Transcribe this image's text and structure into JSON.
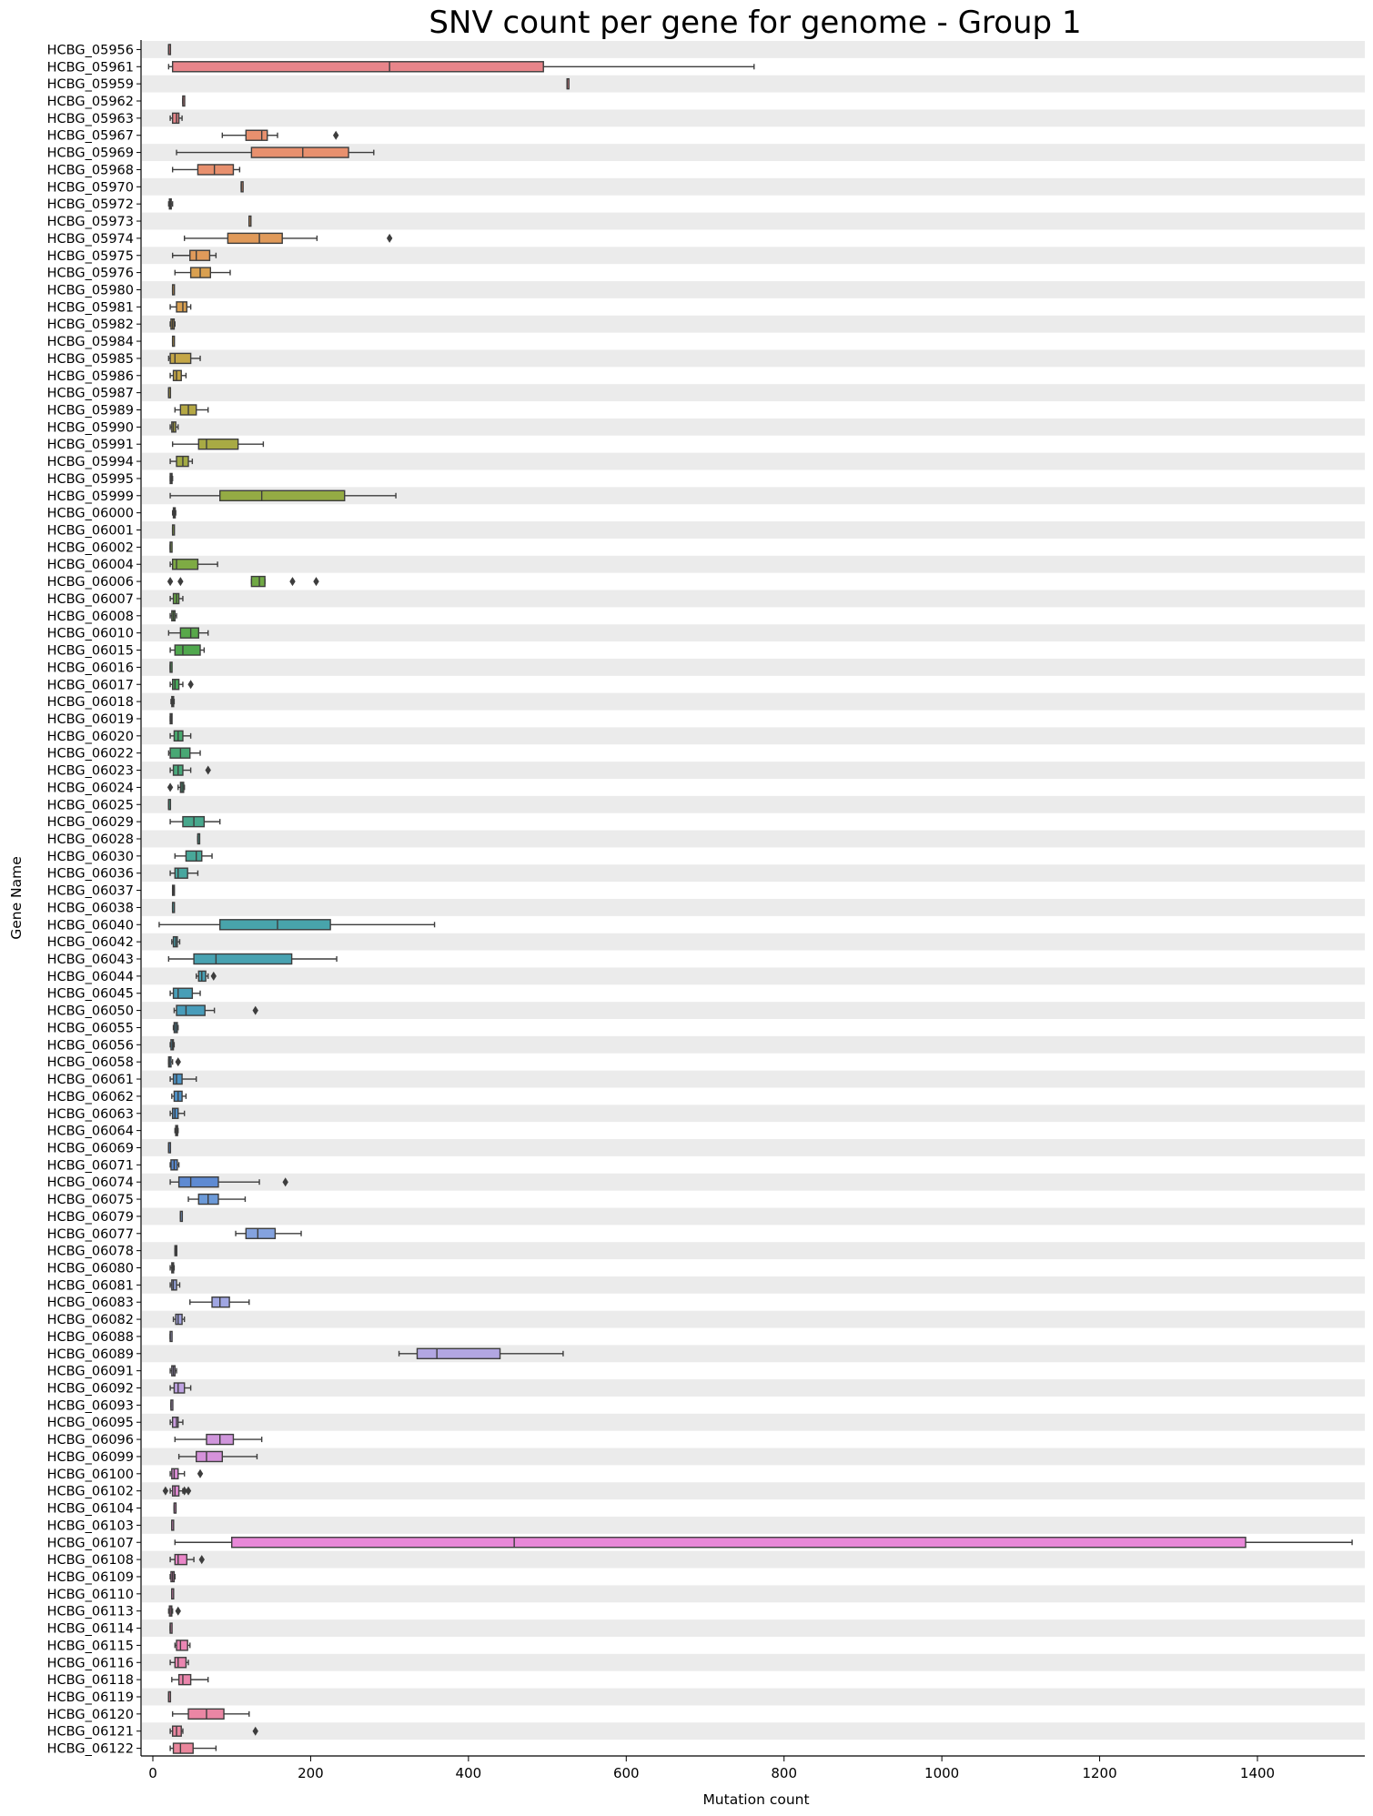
{
  "chart_data": {
    "type": "box",
    "orientation": "horizontal",
    "title": "SNV count per gene for genome - Group 1",
    "xlabel": "Mutation count",
    "ylabel": "Gene Name",
    "xlim": [
      -10,
      1530
    ],
    "xticks": [
      0,
      200,
      400,
      600,
      800,
      1000,
      1200,
      1400
    ],
    "grid": false,
    "band_color": "#ebebeb",
    "categories": [
      "HCBG_05956",
      "HCBG_05961",
      "HCBG_05959",
      "HCBG_05962",
      "HCBG_05963",
      "HCBG_05967",
      "HCBG_05969",
      "HCBG_05968",
      "HCBG_05970",
      "HCBG_05972",
      "HCBG_05973",
      "HCBG_05974",
      "HCBG_05975",
      "HCBG_05976",
      "HCBG_05980",
      "HCBG_05981",
      "HCBG_05982",
      "HCBG_05984",
      "HCBG_05985",
      "HCBG_05986",
      "HCBG_05987",
      "HCBG_05989",
      "HCBG_05990",
      "HCBG_05991",
      "HCBG_05994",
      "HCBG_05995",
      "HCBG_05999",
      "HCBG_06000",
      "HCBG_06001",
      "HCBG_06002",
      "HCBG_06004",
      "HCBG_06006",
      "HCBG_06007",
      "HCBG_06008",
      "HCBG_06010",
      "HCBG_06015",
      "HCBG_06016",
      "HCBG_06017",
      "HCBG_06018",
      "HCBG_06019",
      "HCBG_06020",
      "HCBG_06022",
      "HCBG_06023",
      "HCBG_06024",
      "HCBG_06025",
      "HCBG_06029",
      "HCBG_06028",
      "HCBG_06030",
      "HCBG_06036",
      "HCBG_06037",
      "HCBG_06038",
      "HCBG_06040",
      "HCBG_06042",
      "HCBG_06043",
      "HCBG_06044",
      "HCBG_06045",
      "HCBG_06050",
      "HCBG_06055",
      "HCBG_06056",
      "HCBG_06058",
      "HCBG_06061",
      "HCBG_06062",
      "HCBG_06063",
      "HCBG_06064",
      "HCBG_06069",
      "HCBG_06071",
      "HCBG_06074",
      "HCBG_06075",
      "HCBG_06079",
      "HCBG_06077",
      "HCBG_06078",
      "HCBG_06080",
      "HCBG_06081",
      "HCBG_06083",
      "HCBG_06082",
      "HCBG_06088",
      "HCBG_06089",
      "HCBG_06091",
      "HCBG_06092",
      "HCBG_06093",
      "HCBG_06095",
      "HCBG_06096",
      "HCBG_06099",
      "HCBG_06100",
      "HCBG_06102",
      "HCBG_06104",
      "HCBG_06103",
      "HCBG_06107",
      "HCBG_06108",
      "HCBG_06109",
      "HCBG_06110",
      "HCBG_06113",
      "HCBG_06114",
      "HCBG_06115",
      "HCBG_06116",
      "HCBG_06118",
      "HCBG_06119",
      "HCBG_06120",
      "HCBG_06121",
      "HCBG_06122"
    ],
    "boxes": [
      {
        "min": 20,
        "q1": 20,
        "med": 20,
        "q3": 20,
        "max": 20,
        "color": "#e8858a",
        "fliers": []
      },
      {
        "min": 20,
        "q1": 25,
        "med": 300,
        "q3": 495,
        "max": 762,
        "color": "#e8858a",
        "fliers": []
      },
      {
        "min": 525,
        "q1": 525,
        "med": 525,
        "q3": 525,
        "max": 525,
        "color": "#e8858a",
        "fliers": []
      },
      {
        "min": 38,
        "q1": 38,
        "med": 38,
        "q3": 38,
        "max": 38,
        "color": "#e8858a",
        "fliers": []
      },
      {
        "min": 22,
        "q1": 25,
        "med": 30,
        "q3": 33,
        "max": 37,
        "color": "#e8858a",
        "fliers": []
      },
      {
        "min": 88,
        "q1": 118,
        "med": 138,
        "q3": 145,
        "max": 158,
        "color": "#e8906e",
        "fliers": [
          232
        ]
      },
      {
        "min": 30,
        "q1": 125,
        "med": 190,
        "q3": 248,
        "max": 280,
        "color": "#e8906e",
        "fliers": []
      },
      {
        "min": 25,
        "q1": 57,
        "med": 78,
        "q3": 102,
        "max": 110,
        "color": "#e8906e",
        "fliers": []
      },
      {
        "min": 112,
        "q1": 112,
        "med": 112,
        "q3": 113,
        "max": 114,
        "color": "#e8906e",
        "fliers": []
      },
      {
        "min": 20,
        "q1": 21,
        "med": 22,
        "q3": 23,
        "max": 25,
        "color": "#e8906e",
        "fliers": []
      },
      {
        "min": 122,
        "q1": 122,
        "med": 122,
        "q3": 122,
        "max": 122,
        "color": "#e09a5a",
        "fliers": []
      },
      {
        "min": 40,
        "q1": 95,
        "med": 135,
        "q3": 164,
        "max": 208,
        "color": "#e09a5a",
        "fliers": [
          300
        ]
      },
      {
        "min": 25,
        "q1": 47,
        "med": 55,
        "q3": 72,
        "max": 80,
        "color": "#e09a5a",
        "fliers": []
      },
      {
        "min": 28,
        "q1": 48,
        "med": 60,
        "q3": 73,
        "max": 98,
        "color": "#d9a050",
        "fliers": []
      },
      {
        "min": 25,
        "q1": 25,
        "med": 25,
        "q3": 25,
        "max": 25,
        "color": "#d9a050",
        "fliers": []
      },
      {
        "min": 22,
        "q1": 30,
        "med": 38,
        "q3": 43,
        "max": 48,
        "color": "#d9a050",
        "fliers": []
      },
      {
        "min": 22,
        "q1": 23,
        "med": 25,
        "q3": 27,
        "max": 28,
        "color": "#cfa448",
        "fliers": []
      },
      {
        "min": 25,
        "q1": 25,
        "med": 25,
        "q3": 25,
        "max": 25,
        "color": "#cfa448",
        "fliers": []
      },
      {
        "min": 20,
        "q1": 22,
        "med": 28,
        "q3": 48,
        "max": 60,
        "color": "#c4a646",
        "fliers": []
      },
      {
        "min": 22,
        "q1": 26,
        "med": 30,
        "q3": 36,
        "max": 42,
        "color": "#c4a646",
        "fliers": []
      },
      {
        "min": 20,
        "q1": 20,
        "med": 20,
        "q3": 20,
        "max": 20,
        "color": "#bca844",
        "fliers": []
      },
      {
        "min": 28,
        "q1": 35,
        "med": 45,
        "q3": 55,
        "max": 70,
        "color": "#b5a844",
        "fliers": []
      },
      {
        "min": 22,
        "q1": 24,
        "med": 26,
        "q3": 29,
        "max": 32,
        "color": "#b0a844",
        "fliers": []
      },
      {
        "min": 25,
        "q1": 58,
        "med": 68,
        "q3": 108,
        "max": 140,
        "color": "#a8aa44",
        "fliers": []
      },
      {
        "min": 22,
        "q1": 30,
        "med": 38,
        "q3": 45,
        "max": 50,
        "color": "#a2aa44",
        "fliers": []
      },
      {
        "min": 22,
        "q1": 22,
        "med": 23,
        "q3": 24,
        "max": 25,
        "color": "#9cab44",
        "fliers": []
      },
      {
        "min": 22,
        "q1": 85,
        "med": 138,
        "q3": 243,
        "max": 308,
        "color": "#94ab44",
        "fliers": []
      },
      {
        "min": 25,
        "q1": 26,
        "med": 27,
        "q3": 28,
        "max": 29,
        "color": "#8eab44",
        "fliers": []
      },
      {
        "min": 25,
        "q1": 25,
        "med": 25,
        "q3": 25,
        "max": 25,
        "color": "#8aab44",
        "fliers": []
      },
      {
        "min": 22,
        "q1": 22,
        "med": 22,
        "q3": 22,
        "max": 22,
        "color": "#85ab44",
        "fliers": []
      },
      {
        "min": 22,
        "q1": 25,
        "med": 30,
        "q3": 57,
        "max": 82,
        "color": "#7eab44",
        "fliers": []
      },
      {
        "min": 125,
        "q1": 125,
        "med": 135,
        "q3": 142,
        "max": 142,
        "color": "#70a945",
        "fliers": [
          22,
          35,
          177,
          207
        ]
      },
      {
        "min": 22,
        "q1": 26,
        "med": 30,
        "q3": 33,
        "max": 38,
        "color": "#68a946",
        "fliers": []
      },
      {
        "min": 22,
        "q1": 24,
        "med": 26,
        "q3": 28,
        "max": 30,
        "color": "#62a948",
        "fliers": []
      },
      {
        "min": 20,
        "q1": 35,
        "med": 48,
        "q3": 58,
        "max": 70,
        "color": "#58a84a",
        "fliers": []
      },
      {
        "min": 22,
        "q1": 28,
        "med": 38,
        "q3": 60,
        "max": 65,
        "color": "#50a84e",
        "fliers": []
      },
      {
        "min": 22,
        "q1": 22,
        "med": 22,
        "q3": 22,
        "max": 22,
        "color": "#4aa855",
        "fliers": []
      },
      {
        "min": 22,
        "q1": 25,
        "med": 28,
        "q3": 33,
        "max": 38,
        "color": "#48a85b",
        "fliers": [
          48
        ]
      },
      {
        "min": 23,
        "q1": 24,
        "med": 25,
        "q3": 26,
        "max": 27,
        "color": "#48a862",
        "fliers": []
      },
      {
        "min": 22,
        "q1": 22,
        "med": 23,
        "q3": 23,
        "max": 24,
        "color": "#48a868",
        "fliers": []
      },
      {
        "min": 22,
        "q1": 27,
        "med": 32,
        "q3": 38,
        "max": 48,
        "color": "#48a86e",
        "fliers": []
      },
      {
        "min": 20,
        "q1": 22,
        "med": 35,
        "q3": 47,
        "max": 60,
        "color": "#48a874",
        "fliers": []
      },
      {
        "min": 22,
        "q1": 26,
        "med": 32,
        "q3": 38,
        "max": 48,
        "color": "#48a87a",
        "fliers": [
          70
        ]
      },
      {
        "min": 32,
        "q1": 35,
        "med": 37,
        "q3": 39,
        "max": 40,
        "color": "#48a880",
        "fliers": [
          22
        ]
      },
      {
        "min": 20,
        "q1": 20,
        "med": 20,
        "q3": 20,
        "max": 20,
        "color": "#48a887",
        "fliers": []
      },
      {
        "min": 22,
        "q1": 38,
        "med": 52,
        "q3": 65,
        "max": 85,
        "color": "#48a88d",
        "fliers": []
      },
      {
        "min": 57,
        "q1": 57,
        "med": 57,
        "q3": 57,
        "max": 57,
        "color": "#48a893",
        "fliers": []
      },
      {
        "min": 28,
        "q1": 42,
        "med": 55,
        "q3": 62,
        "max": 75,
        "color": "#48a899",
        "fliers": []
      },
      {
        "min": 22,
        "q1": 28,
        "med": 32,
        "q3": 44,
        "max": 57,
        "color": "#48a79f",
        "fliers": []
      },
      {
        "min": 25,
        "q1": 25,
        "med": 26,
        "q3": 26,
        "max": 27,
        "color": "#48a6a4",
        "fliers": []
      },
      {
        "min": 25,
        "q1": 25,
        "med": 25,
        "q3": 25,
        "max": 25,
        "color": "#48a5a8",
        "fliers": []
      },
      {
        "min": 8,
        "q1": 85,
        "med": 158,
        "q3": 225,
        "max": 357,
        "color": "#48a4ab",
        "fliers": []
      },
      {
        "min": 24,
        "q1": 26,
        "med": 29,
        "q3": 31,
        "max": 34,
        "color": "#48a3ae",
        "fliers": []
      },
      {
        "min": 20,
        "q1": 52,
        "med": 80,
        "q3": 176,
        "max": 233,
        "color": "#48a2b1",
        "fliers": []
      },
      {
        "min": 55,
        "q1": 58,
        "med": 62,
        "q3": 67,
        "max": 70,
        "color": "#48a0b4",
        "fliers": [
          77
        ]
      },
      {
        "min": 22,
        "q1": 26,
        "med": 32,
        "q3": 50,
        "max": 60,
        "color": "#489eb7",
        "fliers": []
      },
      {
        "min": 27,
        "q1": 30,
        "med": 42,
        "q3": 66,
        "max": 78,
        "color": "#489cba",
        "fliers": [
          130
        ]
      },
      {
        "min": 26,
        "q1": 27,
        "med": 29,
        "q3": 31,
        "max": 32,
        "color": "#489abd",
        "fliers": []
      },
      {
        "min": 22,
        "q1": 23,
        "med": 25,
        "q3": 26,
        "max": 27,
        "color": "#4998c0",
        "fliers": []
      },
      {
        "min": 20,
        "q1": 20,
        "med": 21,
        "q3": 23,
        "max": 25,
        "color": "#4a96c3",
        "fliers": [
          32
        ]
      },
      {
        "min": 22,
        "q1": 26,
        "med": 30,
        "q3": 37,
        "max": 55,
        "color": "#4c94c6",
        "fliers": []
      },
      {
        "min": 24,
        "q1": 27,
        "med": 32,
        "q3": 37,
        "max": 42,
        "color": "#4e92c9",
        "fliers": []
      },
      {
        "min": 22,
        "q1": 25,
        "med": 28,
        "q3": 32,
        "max": 40,
        "color": "#5090cb",
        "fliers": []
      },
      {
        "min": 28,
        "q1": 29,
        "med": 30,
        "q3": 31,
        "max": 32,
        "color": "#538ecd",
        "fliers": []
      },
      {
        "min": 20,
        "q1": 20,
        "med": 20,
        "q3": 20,
        "max": 20,
        "color": "#568ccf",
        "fliers": []
      },
      {
        "min": 22,
        "q1": 23,
        "med": 27,
        "q3": 31,
        "max": 33,
        "color": "#5a8ad1",
        "fliers": []
      },
      {
        "min": 22,
        "q1": 33,
        "med": 48,
        "q3": 83,
        "max": 135,
        "color": "#5e8ad2",
        "fliers": [
          168
        ]
      },
      {
        "min": 45,
        "q1": 58,
        "med": 70,
        "q3": 83,
        "max": 117,
        "color": "#6c9ad8",
        "fliers": []
      },
      {
        "min": 35,
        "q1": 35,
        "med": 35,
        "q3": 35,
        "max": 35,
        "color": "#7aa0dc",
        "fliers": []
      },
      {
        "min": 105,
        "q1": 118,
        "med": 133,
        "q3": 155,
        "max": 188,
        "color": "#84a2de",
        "fliers": []
      },
      {
        "min": 28,
        "q1": 28,
        "med": 29,
        "q3": 30,
        "max": 30,
        "color": "#8aa2df",
        "fliers": []
      },
      {
        "min": 22,
        "q1": 24,
        "med": 25,
        "q3": 26,
        "max": 27,
        "color": "#92a4e0",
        "fliers": []
      },
      {
        "min": 22,
        "q1": 24,
        "med": 26,
        "q3": 30,
        "max": 34,
        "color": "#98a6e1",
        "fliers": []
      },
      {
        "min": 47,
        "q1": 75,
        "med": 85,
        "q3": 97,
        "max": 122,
        "color": "#a0a6e2",
        "fliers": []
      },
      {
        "min": 26,
        "q1": 29,
        "med": 32,
        "q3": 37,
        "max": 40,
        "color": "#a5a6e2",
        "fliers": []
      },
      {
        "min": 22,
        "q1": 22,
        "med": 22,
        "q3": 22,
        "max": 22,
        "color": "#aba6e2",
        "fliers": []
      },
      {
        "min": 312,
        "q1": 335,
        "med": 360,
        "q3": 440,
        "max": 520,
        "color": "#b2a6e2",
        "fliers": []
      },
      {
        "min": 22,
        "q1": 24,
        "med": 26,
        "q3": 28,
        "max": 30,
        "color": "#b8a4e2",
        "fliers": []
      },
      {
        "min": 22,
        "q1": 27,
        "med": 32,
        "q3": 40,
        "max": 48,
        "color": "#bea2e1",
        "fliers": []
      },
      {
        "min": 23,
        "q1": 23,
        "med": 23,
        "q3": 23,
        "max": 23,
        "color": "#c4a0e0",
        "fliers": []
      },
      {
        "min": 22,
        "q1": 25,
        "med": 30,
        "q3": 32,
        "max": 38,
        "color": "#c99cde",
        "fliers": []
      },
      {
        "min": 28,
        "q1": 68,
        "med": 85,
        "q3": 102,
        "max": 138,
        "color": "#d096dc",
        "fliers": []
      },
      {
        "min": 33,
        "q1": 55,
        "med": 68,
        "q3": 88,
        "max": 132,
        "color": "#d592da",
        "fliers": []
      },
      {
        "min": 22,
        "q1": 24,
        "med": 27,
        "q3": 32,
        "max": 40,
        "color": "#db8ed6",
        "fliers": [
          60
        ]
      },
      {
        "min": 22,
        "q1": 25,
        "med": 28,
        "q3": 33,
        "max": 38,
        "color": "#e08ad2",
        "fliers": [
          16,
          40,
          45
        ]
      },
      {
        "min": 27,
        "q1": 27,
        "med": 27,
        "q3": 27,
        "max": 27,
        "color": "#e48acd",
        "fliers": []
      },
      {
        "min": 24,
        "q1": 24,
        "med": 24,
        "q3": 24,
        "max": 24,
        "color": "#e48acd",
        "fliers": []
      },
      {
        "min": 28,
        "q1": 100,
        "med": 458,
        "q3": 1385,
        "max": 1520,
        "color": "#e888d8",
        "fliers": []
      },
      {
        "min": 22,
        "q1": 28,
        "med": 32,
        "q3": 43,
        "max": 52,
        "color": "#ea86c8",
        "fliers": [
          62
        ]
      },
      {
        "min": 22,
        "q1": 23,
        "med": 25,
        "q3": 27,
        "max": 28,
        "color": "#ea86c4",
        "fliers": []
      },
      {
        "min": 24,
        "q1": 24,
        "med": 24,
        "q3": 24,
        "max": 24,
        "color": "#ea86c0",
        "fliers": []
      },
      {
        "min": 20,
        "q1": 21,
        "med": 23,
        "q3": 24,
        "max": 25,
        "color": "#ea86bc",
        "fliers": [
          32
        ]
      },
      {
        "min": 22,
        "q1": 22,
        "med": 22,
        "q3": 22,
        "max": 22,
        "color": "#ea86b8",
        "fliers": []
      },
      {
        "min": 28,
        "q1": 30,
        "med": 35,
        "q3": 44,
        "max": 47,
        "color": "#ea86b4",
        "fliers": []
      },
      {
        "min": 22,
        "q1": 28,
        "med": 32,
        "q3": 42,
        "max": 45,
        "color": "#ea86b0",
        "fliers": []
      },
      {
        "min": 24,
        "q1": 33,
        "med": 38,
        "q3": 48,
        "max": 70,
        "color": "#ea86ac",
        "fliers": []
      },
      {
        "min": 20,
        "q1": 20,
        "med": 20,
        "q3": 20,
        "max": 20,
        "color": "#ea86a8",
        "fliers": []
      },
      {
        "min": 25,
        "q1": 45,
        "med": 68,
        "q3": 90,
        "max": 122,
        "color": "#ea86a4",
        "fliers": []
      },
      {
        "min": 22,
        "q1": 25,
        "med": 30,
        "q3": 36,
        "max": 38,
        "color": "#ea86a0",
        "fliers": [
          130
        ]
      },
      {
        "min": 22,
        "q1": 26,
        "med": 35,
        "q3": 51,
        "max": 80,
        "color": "#ea869c",
        "fliers": []
      }
    ]
  }
}
